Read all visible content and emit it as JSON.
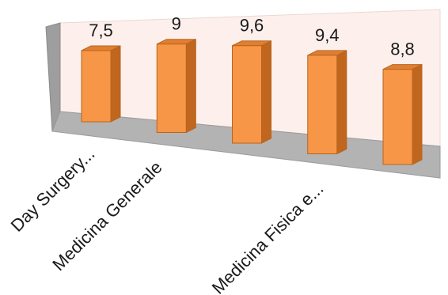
{
  "chart_data": {
    "type": "bar",
    "style": "3d-column",
    "categories": [
      "Day Surgery...",
      "",
      "Medicina Generale",
      "",
      "Medicina Fisica e..."
    ],
    "tick_labels_shown": [
      "Day Surgery...",
      "Medicina Generale",
      "Medicina Fisica e..."
    ],
    "values": [
      7.5,
      9,
      9.6,
      9.4,
      8.8
    ],
    "data_labels": [
      "7,5",
      "9",
      "9,6",
      "9,4",
      "8,8"
    ],
    "title": "",
    "xlabel": "",
    "ylabel": "",
    "ylim": [
      0,
      10
    ],
    "grid": false,
    "legend": "none",
    "colors": {
      "bar_front": "#f79646",
      "bar_side": "#c0661e",
      "bar_top": "#e07f31",
      "bar_outline": "#b8651f",
      "back_wall": "#fdf0ec",
      "side_wall": "#9e9e9e",
      "floor": "#b3b3b3"
    }
  }
}
